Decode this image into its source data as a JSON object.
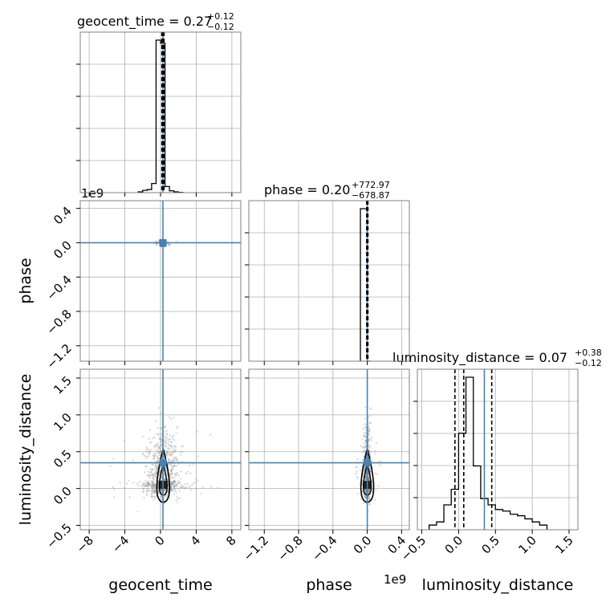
{
  "chart_data": {
    "type": "corner",
    "parameters": [
      "geocent_time",
      "phase",
      "luminosity_distance"
    ],
    "truths": {
      "geocent_time": 0.27,
      "phase": 0.0,
      "luminosity_distance": 0.35
    },
    "truth_color": "#4682b4",
    "ranges": {
      "geocent_time": [
        -9,
        9
      ],
      "phase": [
        -1.38,
        0.49
      ],
      "luminosity_distance": [
        -0.56,
        1.62
      ]
    },
    "ticks": {
      "geocent_time": {
        "values": [
          -8,
          -4,
          0,
          4,
          8
        ],
        "labels": [
          "−8",
          "−4",
          "0",
          "4",
          "8"
        ]
      },
      "phase_x": {
        "values": [
          -1.2,
          -0.8,
          -0.4,
          0.0,
          0.4
        ],
        "labels": [
          "−1.2",
          "−0.8",
          "−0.4",
          "0.0",
          "0.4"
        ]
      },
      "phase_y": {
        "values": [
          0.4,
          0.0,
          -0.4,
          -0.8,
          -1.2
        ],
        "labels": [
          "0.4",
          "0.0",
          "−0.4",
          "−0.8",
          "−1.2"
        ]
      },
      "luminosity_distance_x": {
        "values": [
          -0.5,
          0.0,
          0.5,
          1.0,
          1.5
        ],
        "labels": [
          "−0.5",
          "0.0",
          "0.5",
          "1.0",
          "1.5"
        ]
      },
      "luminosity_distance_y": {
        "values": [
          1.5,
          1.0,
          0.5,
          0.0,
          -0.5
        ],
        "labels": [
          "1.5",
          "1.0",
          "0.5",
          "0.0",
          "−0.5"
        ]
      }
    },
    "offset_labels": {
      "phase_axis": "1e9"
    },
    "titles": {
      "geocent_time": {
        "name": "geocent_time",
        "median": "0.27",
        "plus": "+0.12",
        "minus": "−0.12"
      },
      "phase": {
        "name": "phase",
        "median": "0.20",
        "plus": "+772.97",
        "minus": "−678.87"
      },
      "luminosity_distance": {
        "name": "luminosity_distance",
        "median": "0.07",
        "plus": "+0.38",
        "minus": "−0.12"
      }
    },
    "quantiles": {
      "geocent_time": [
        0.15,
        0.27,
        0.39
      ],
      "phase": [
        -0.0068,
        0.0,
        0.0077
      ],
      "luminosity_distance": [
        -0.05,
        0.07,
        0.45
      ]
    },
    "histograms": {
      "geocent_time": {
        "edges": [
          -2.5,
          -2.0,
          -1.5,
          -1.0,
          -0.5,
          0.0,
          0.5,
          1.0,
          1.5,
          2.0,
          2.5
        ],
        "counts": [
          0.005,
          0.015,
          0.02,
          0.06,
          1.0,
          0.98,
          0.04,
          0.012,
          0.005,
          0.002
        ]
      },
      "phase": {
        "edges": [
          -0.08,
          -0.04,
          0.0,
          0.04
        ],
        "counts": [
          1.0,
          1.0,
          0.0
        ]
      },
      "luminosity_distance": {
        "edges": [
          -0.4,
          -0.3,
          -0.2,
          -0.1,
          0.0,
          0.1,
          0.2,
          0.3,
          0.4,
          0.5,
          0.6,
          0.7,
          0.8,
          0.9,
          1.0,
          1.1,
          1.2
        ],
        "counts": [
          0.03,
          0.05,
          0.16,
          0.26,
          0.62,
          0.98,
          0.41,
          0.2,
          0.16,
          0.13,
          0.12,
          0.1,
          0.09,
          0.07,
          0.05,
          0.03
        ]
      }
    },
    "grid": true,
    "axis_labels": {
      "geocent_time": "geocent_time",
      "phase": "phase",
      "luminosity_distance": "luminosity_distance"
    }
  }
}
